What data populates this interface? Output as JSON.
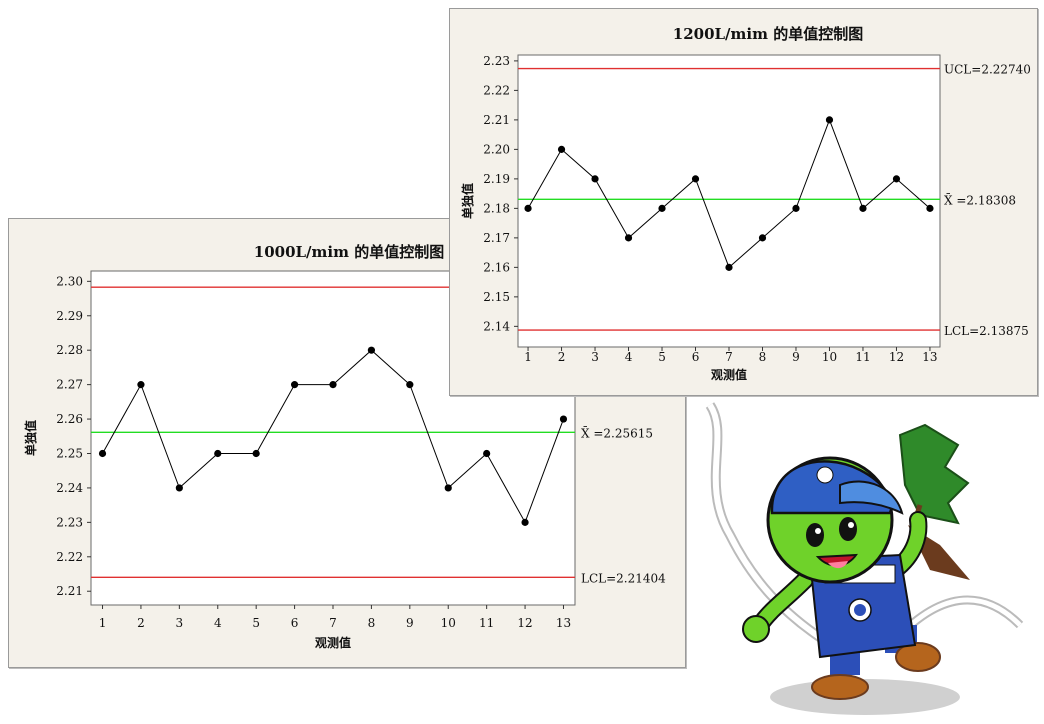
{
  "chart_data": [
    {
      "id": "c1000",
      "type": "line",
      "title": "1000L/mim 的单值控制图",
      "xlabel": "观测值",
      "ylabel": "单独值",
      "x": [
        1,
        2,
        3,
        4,
        5,
        6,
        7,
        8,
        9,
        10,
        11,
        12,
        13
      ],
      "values": [
        2.25,
        2.27,
        2.24,
        2.25,
        2.25,
        2.27,
        2.27,
        2.28,
        2.27,
        2.24,
        2.25,
        2.23,
        2.26
      ],
      "ylim": [
        2.206,
        2.303
      ],
      "yticks": [
        2.21,
        2.22,
        2.23,
        2.24,
        2.25,
        2.26,
        2.27,
        2.28,
        2.29,
        2.3
      ],
      "ytick_labels": [
        "2.21",
        "2.22",
        "2.23",
        "2.24",
        "2.25",
        "2.26",
        "2.27",
        "2.28",
        "2.29",
        "2.30"
      ],
      "ucl": 2.2983,
      "center": 2.25615,
      "lcl": 2.21404,
      "center_label": "X̄ =2.25615",
      "lcl_label": "LCL=2.21404",
      "ucl_label": "",
      "line_colors": {
        "limits": "#e03030",
        "center": "#22dd22",
        "series": "#000000"
      }
    },
    {
      "id": "c1200",
      "type": "line",
      "title": "1200L/mim 的单值控制图",
      "xlabel": "观测值",
      "ylabel": "单独值",
      "x": [
        1,
        2,
        3,
        4,
        5,
        6,
        7,
        8,
        9,
        10,
        11,
        12,
        13
      ],
      "values": [
        2.18,
        2.2,
        2.19,
        2.17,
        2.18,
        2.19,
        2.16,
        2.17,
        2.18,
        2.21,
        2.18,
        2.19,
        2.18
      ],
      "ylim": [
        2.133,
        2.232
      ],
      "yticks": [
        2.14,
        2.15,
        2.16,
        2.17,
        2.18,
        2.19,
        2.2,
        2.21,
        2.22,
        2.23
      ],
      "ytick_labels": [
        "2.14",
        "2.15",
        "2.16",
        "2.17",
        "2.18",
        "2.19",
        "2.20",
        "2.21",
        "2.22",
        "2.23"
      ],
      "ucl": 2.2274,
      "center": 2.18308,
      "lcl": 2.13875,
      "center_label": "X̄ =2.18308",
      "lcl_label": "LCL=2.13875",
      "ucl_label": "UCL=2.22740",
      "line_colors": {
        "limits": "#e03030",
        "center": "#22dd22",
        "series": "#000000"
      }
    }
  ],
  "mascot": {
    "icon": "green-mascot-with-tree-icon",
    "skin": "#6fd22a",
    "cap": "#2f5fc4",
    "overalls": "#2c4fb8"
  }
}
